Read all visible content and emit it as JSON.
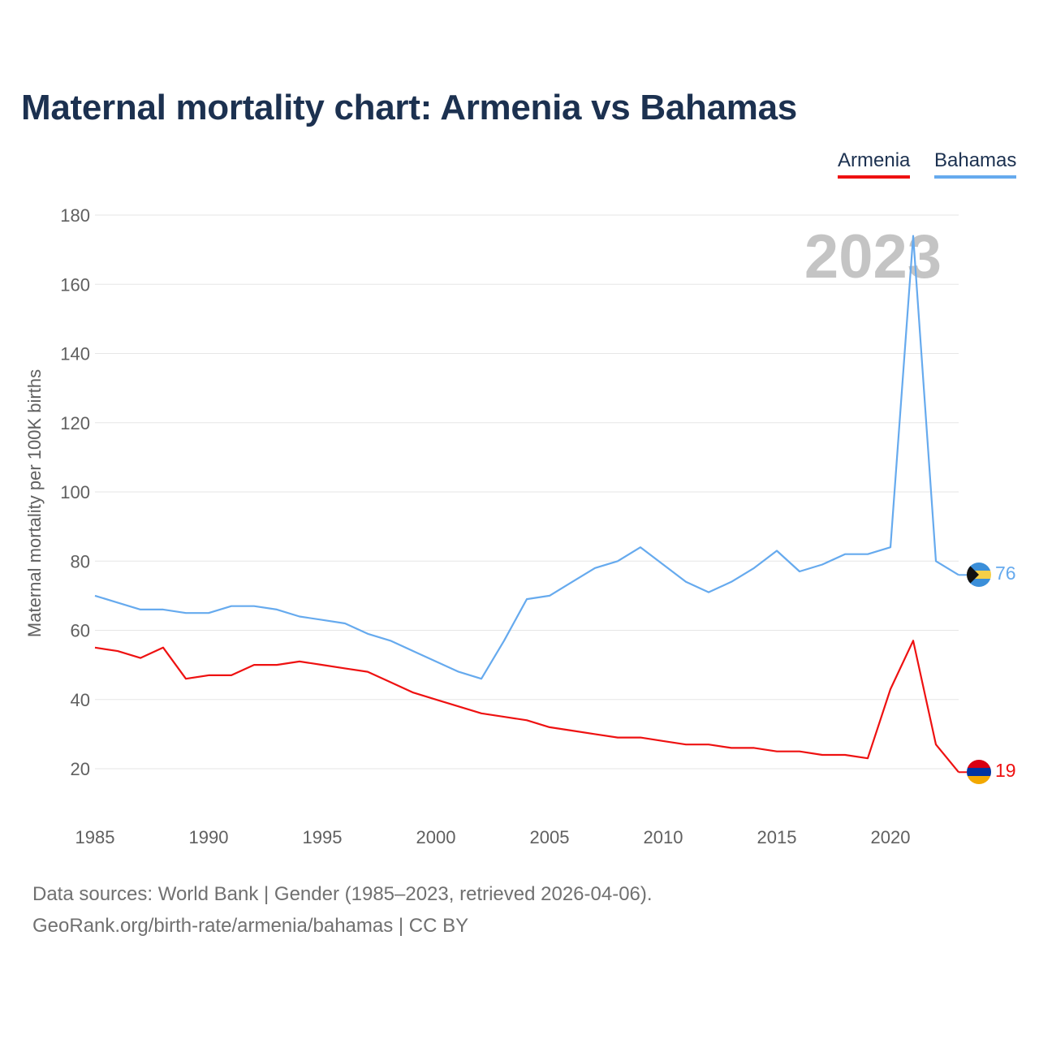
{
  "title": "Maternal mortality chart: Armenia vs Bahamas",
  "legend": [
    {
      "name": "Armenia",
      "color": "#ee1111"
    },
    {
      "name": "Bahamas",
      "color": "#66aaee"
    }
  ],
  "year_overlay": "2023",
  "chart_data": {
    "type": "line",
    "title": "Maternal mortality chart: Armenia vs Bahamas",
    "xlabel": "",
    "ylabel": "Maternal mortality per 100K births",
    "x": [
      1985,
      1986,
      1987,
      1988,
      1989,
      1990,
      1991,
      1992,
      1993,
      1994,
      1995,
      1996,
      1997,
      1998,
      1999,
      2000,
      2001,
      2002,
      2003,
      2004,
      2005,
      2006,
      2007,
      2008,
      2009,
      2010,
      2011,
      2012,
      2013,
      2014,
      2015,
      2016,
      2017,
      2018,
      2019,
      2020,
      2021,
      2022,
      2023
    ],
    "xticks": [
      1985,
      1990,
      1995,
      2000,
      2005,
      2010,
      2015,
      2020
    ],
    "yticks": [
      20,
      40,
      60,
      80,
      100,
      120,
      140,
      160,
      180
    ],
    "xlim": [
      1985,
      2023
    ],
    "ylim": [
      10,
      185
    ],
    "grid": true,
    "legend_position": "top-right",
    "series": [
      {
        "name": "Armenia",
        "color": "#ee1111",
        "end_label": "19",
        "values": [
          55,
          54,
          52,
          55,
          46,
          47,
          47,
          50,
          50,
          51,
          50,
          49,
          48,
          45,
          42,
          40,
          38,
          36,
          35,
          34,
          32,
          31,
          30,
          29,
          29,
          28,
          27,
          27,
          26,
          26,
          25,
          25,
          24,
          24,
          23,
          43,
          57,
          27,
          19
        ]
      },
      {
        "name": "Bahamas",
        "color": "#66aaee",
        "end_label": "76",
        "values": [
          70,
          68,
          66,
          66,
          65,
          65,
          67,
          67,
          66,
          64,
          63,
          62,
          59,
          57,
          54,
          51,
          48,
          46,
          57,
          69,
          70,
          74,
          78,
          80,
          84,
          79,
          74,
          71,
          74,
          78,
          83,
          77,
          79,
          82,
          82,
          84,
          174,
          80,
          76
        ]
      }
    ]
  },
  "source": {
    "line1": "Data sources: World Bank | Gender (1985–2023, retrieved 2026-04-06).",
    "line2": "GeoRank.org/birth-rate/armenia/bahamas | CC BY"
  }
}
